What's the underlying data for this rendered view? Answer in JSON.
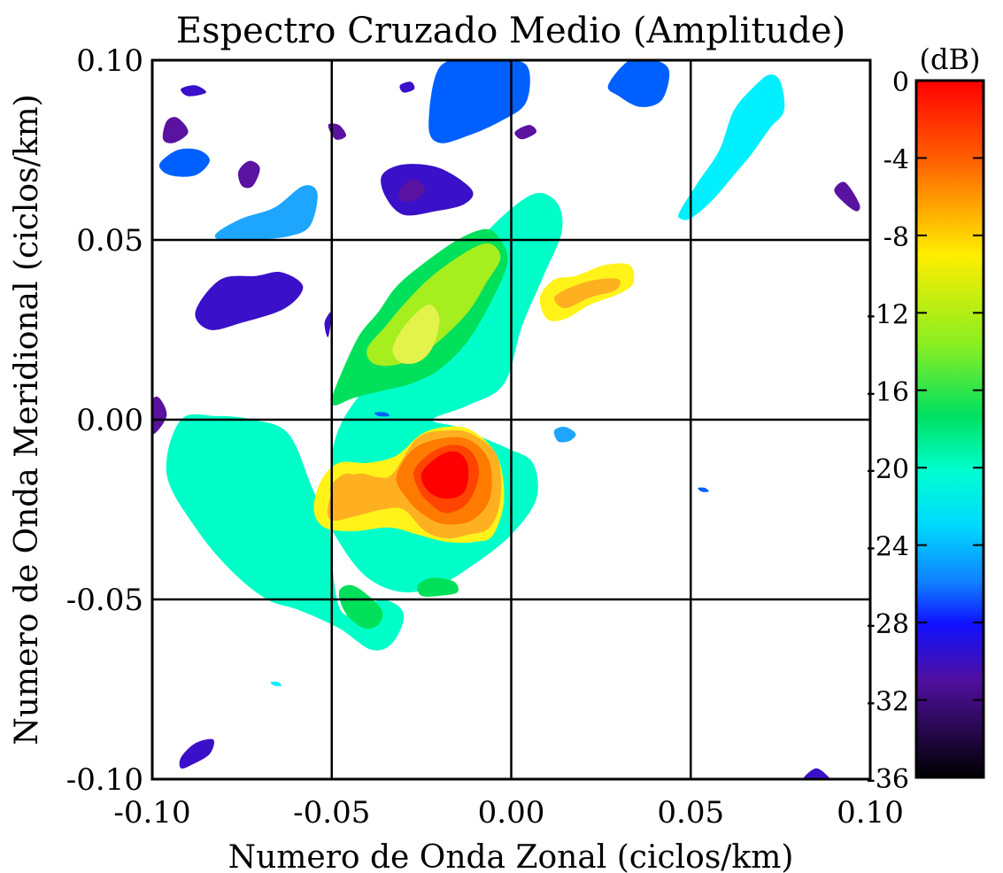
{
  "chart_data": {
    "type": "heatmap",
    "title": "Espectro Cruzado Medio (Amplitude)",
    "xlabel": "Numero de Onda Zonal (ciclos/km)",
    "ylabel": "Numero de Onda Meridional (ciclos/km)",
    "xlim": [
      -0.1,
      0.1
    ],
    "ylim": [
      -0.1,
      0.1
    ],
    "xticks": [
      "-0.10",
      "-0.05",
      "0.00",
      "0.05",
      "0.10"
    ],
    "yticks": [
      "0.10",
      "0.05",
      "0.00",
      "-0.05",
      "-0.10"
    ],
    "grid": true,
    "colorbar": {
      "unit": "(dB)",
      "range": [
        -36,
        0
      ],
      "ticks": [
        "0",
        "-4",
        "-8",
        "-12",
        "-16",
        "-20",
        "-24",
        "-28",
        "-32",
        "-36"
      ]
    },
    "regions": [
      {
        "name": "main-ridge",
        "level_db": -20,
        "color": "#00FFC8",
        "x": [
          -0.092,
          -0.096,
          -0.088,
          -0.078,
          -0.068,
          -0.059,
          -0.048,
          -0.039,
          -0.033,
          -0.03,
          -0.036,
          -0.048,
          -0.05,
          -0.04,
          -0.03,
          -0.02,
          -0.012,
          -0.002,
          0.007,
          0.013,
          0.014,
          0.009,
          0.003,
          -0.002,
          -0.012,
          -0.022,
          -0.015,
          -0.008,
          -0.001,
          0.006,
          0.007,
          0.0,
          -0.01,
          -0.02,
          -0.03,
          -0.04,
          -0.048,
          -0.055,
          -0.062,
          -0.072,
          -0.082
        ],
        "y": [
          0.0,
          -0.015,
          -0.03,
          -0.042,
          -0.05,
          -0.053,
          -0.058,
          -0.064,
          -0.062,
          -0.054,
          -0.05,
          -0.052,
          -0.01,
          0.01,
          0.022,
          0.032,
          0.046,
          0.057,
          0.063,
          0.06,
          0.052,
          0.04,
          0.026,
          0.01,
          0.004,
          0.0,
          -0.002,
          -0.005,
          -0.008,
          -0.012,
          -0.022,
          -0.032,
          -0.04,
          -0.046,
          -0.048,
          -0.044,
          -0.034,
          -0.02,
          -0.004,
          0.0,
          0.001
        ]
      },
      {
        "name": "arm-green",
        "level_db": -17,
        "color": "#00E05A",
        "x": [
          -0.05,
          -0.046,
          -0.042,
          -0.037,
          -0.032,
          -0.025,
          -0.015,
          -0.007,
          -0.003,
          -0.001,
          -0.005,
          -0.012,
          -0.02,
          -0.028,
          -0.036,
          -0.044,
          -0.049
        ],
        "y": [
          0.006,
          0.016,
          0.024,
          0.03,
          0.037,
          0.043,
          0.05,
          0.053,
          0.05,
          0.044,
          0.034,
          0.022,
          0.014,
          0.01,
          0.008,
          0.006,
          0.004
        ]
      },
      {
        "name": "arm-lime",
        "level_db": -14,
        "color": "#A6EE1E",
        "x": [
          -0.04,
          -0.035,
          -0.03,
          -0.022,
          -0.012,
          -0.006,
          -0.003,
          -0.007,
          -0.012,
          -0.02,
          -0.027,
          -0.034,
          -0.039
        ],
        "y": [
          0.02,
          0.026,
          0.032,
          0.04,
          0.047,
          0.049,
          0.045,
          0.038,
          0.03,
          0.022,
          0.017,
          0.015,
          0.016
        ]
      },
      {
        "name": "arm-yellow",
        "level_db": -11,
        "color": "#E4F24C",
        "x": [
          -0.033,
          -0.029,
          -0.023,
          -0.02,
          -0.022,
          -0.026,
          -0.031
        ],
        "y": [
          0.02,
          0.027,
          0.032,
          0.028,
          0.02,
          0.016,
          0.016
        ]
      },
      {
        "name": "peak-outer",
        "level_db": -12,
        "color": "#FFF31A",
        "x": [
          -0.055,
          -0.053,
          -0.048,
          -0.04,
          -0.032,
          -0.025,
          -0.018,
          -0.011,
          -0.004,
          -0.002,
          -0.005,
          -0.01,
          -0.018,
          -0.026,
          -0.034,
          -0.044,
          -0.052
        ],
        "y": [
          -0.025,
          -0.017,
          -0.012,
          -0.012,
          -0.01,
          -0.004,
          -0.002,
          -0.003,
          -0.01,
          -0.022,
          -0.032,
          -0.034,
          -0.034,
          -0.032,
          -0.03,
          -0.031,
          -0.03
        ]
      },
      {
        "name": "peak-orange",
        "level_db": -9,
        "color": "#FFB020",
        "x": [
          -0.051,
          -0.048,
          -0.042,
          -0.037,
          -0.033,
          -0.026,
          -0.018,
          -0.011,
          -0.004,
          -0.003,
          -0.006,
          -0.012,
          -0.018,
          -0.024,
          -0.03,
          -0.036,
          -0.044,
          -0.05
        ],
        "y": [
          -0.024,
          -0.017,
          -0.015,
          -0.016,
          -0.015,
          -0.005,
          -0.003,
          -0.004,
          -0.01,
          -0.022,
          -0.03,
          -0.032,
          -0.033,
          -0.031,
          -0.025,
          -0.025,
          -0.027,
          -0.028
        ]
      },
      {
        "name": "peak-dark-orange",
        "level_db": -6,
        "color": "#FF7A00",
        "x": [
          -0.032,
          -0.027,
          -0.018,
          -0.011,
          -0.006,
          -0.006,
          -0.011,
          -0.019,
          -0.025,
          -0.029
        ],
        "y": [
          -0.016,
          -0.008,
          -0.005,
          -0.006,
          -0.012,
          -0.022,
          -0.028,
          -0.029,
          -0.026,
          -0.022
        ]
      },
      {
        "name": "peak-red-orange",
        "level_db": -3,
        "color": "#FF4400",
        "x": [
          -0.027,
          -0.022,
          -0.016,
          -0.011,
          -0.009,
          -0.012,
          -0.018,
          -0.023,
          -0.026
        ],
        "y": [
          -0.014,
          -0.009,
          -0.007,
          -0.009,
          -0.015,
          -0.023,
          -0.026,
          -0.023,
          -0.019
        ]
      },
      {
        "name": "peak-red",
        "level_db": 0,
        "color": "#FF0000",
        "x": [
          -0.025,
          -0.02,
          -0.015,
          -0.012,
          -0.013,
          -0.018,
          -0.023
        ],
        "y": [
          -0.015,
          -0.01,
          -0.009,
          -0.013,
          -0.02,
          -0.022,
          -0.02
        ]
      },
      {
        "name": "side-peak-orange",
        "level_db": -10,
        "color": "#FFB020",
        "x": [
          -0.05,
          -0.046,
          -0.042,
          -0.043,
          -0.047,
          -0.05
        ],
        "y": [
          -0.018,
          -0.015,
          -0.017,
          -0.022,
          -0.023,
          -0.021
        ]
      },
      {
        "name": "right-blob-yellow",
        "level_db": -11,
        "color": "#FFF31A",
        "x": [
          0.008,
          0.012,
          0.018,
          0.026,
          0.033,
          0.034,
          0.03,
          0.022,
          0.015,
          0.01
        ],
        "y": [
          0.034,
          0.039,
          0.04,
          0.043,
          0.043,
          0.038,
          0.035,
          0.032,
          0.028,
          0.028
        ]
      },
      {
        "name": "right-blob-orange",
        "level_db": -9,
        "color": "#FFB020",
        "x": [
          0.012,
          0.017,
          0.024,
          0.03,
          0.029,
          0.022,
          0.015
        ],
        "y": [
          0.034,
          0.037,
          0.039,
          0.039,
          0.036,
          0.034,
          0.031
        ]
      },
      {
        "name": "low-green-1",
        "level_db": -17,
        "color": "#00E05A",
        "x": [
          -0.048,
          -0.045,
          -0.041,
          -0.036,
          -0.037,
          -0.041,
          -0.046
        ],
        "y": [
          -0.048,
          -0.046,
          -0.048,
          -0.053,
          -0.057,
          -0.058,
          -0.054
        ]
      },
      {
        "name": "low-green-2",
        "level_db": -17,
        "color": "#00E05A",
        "x": [
          -0.026,
          -0.022,
          -0.016,
          -0.015,
          -0.02,
          -0.025
        ],
        "y": [
          -0.046,
          -0.044,
          -0.045,
          -0.048,
          -0.049,
          -0.049
        ]
      },
      {
        "name": "top-cyan-right",
        "level_db": -23,
        "color": "#00F0FF",
        "x": [
          0.047,
          0.052,
          0.058,
          0.062,
          0.068,
          0.072,
          0.075,
          0.076,
          0.072,
          0.067,
          0.062,
          0.056,
          0.05,
          0.047
        ],
        "y": [
          0.058,
          0.066,
          0.075,
          0.086,
          0.093,
          0.096,
          0.094,
          0.086,
          0.081,
          0.074,
          0.068,
          0.061,
          0.056,
          0.056
        ]
      },
      {
        "name": "top-sky-left",
        "level_db": -25,
        "color": "#1EA6FF",
        "x": [
          -0.082,
          -0.075,
          -0.066,
          -0.058,
          -0.054,
          -0.056,
          -0.062,
          -0.072,
          -0.081
        ],
        "y": [
          0.052,
          0.056,
          0.059,
          0.065,
          0.063,
          0.054,
          0.051,
          0.05,
          0.05
        ]
      },
      {
        "name": "top-blue-center",
        "level_db": -27,
        "color": "#0060FF",
        "x": [
          -0.023,
          -0.02,
          -0.01,
          0.001,
          0.005,
          0.004,
          -0.003,
          -0.012,
          -0.02
        ],
        "y": [
          0.082,
          0.098,
          0.1,
          0.1,
          0.097,
          0.088,
          0.083,
          0.079,
          0.077
        ]
      },
      {
        "name": "top-blue-right",
        "level_db": -27,
        "color": "#0060FF",
        "x": [
          0.027,
          0.033,
          0.04,
          0.044,
          0.042,
          0.036,
          0.03
        ],
        "y": [
          0.093,
          0.1,
          0.1,
          0.097,
          0.089,
          0.087,
          0.09
        ]
      },
      {
        "name": "top-blue-left",
        "level_db": -27,
        "color": "#0060FF",
        "x": [
          -0.098,
          -0.093,
          -0.087,
          -0.084,
          -0.088,
          -0.095
        ],
        "y": [
          0.071,
          0.075,
          0.075,
          0.072,
          0.068,
          0.068
        ]
      },
      {
        "name": "top-indigo-1",
        "level_db": -30,
        "color": "#3A10C8",
        "x": [
          -0.088,
          -0.081,
          -0.071,
          -0.064,
          -0.058,
          -0.063,
          -0.075,
          -0.084
        ],
        "y": [
          0.03,
          0.039,
          0.04,
          0.041,
          0.037,
          0.031,
          0.027,
          0.025
        ]
      },
      {
        "name": "top-indigo-2",
        "level_db": -30,
        "color": "#3A10C8",
        "x": [
          -0.036,
          -0.03,
          -0.02,
          -0.011,
          -0.013,
          -0.021,
          -0.03,
          -0.035
        ],
        "y": [
          0.068,
          0.071,
          0.07,
          0.064,
          0.06,
          0.058,
          0.057,
          0.062
        ]
      },
      {
        "name": "top-purple-1",
        "level_db": -32,
        "color": "#5A12A0",
        "x": [
          -0.076,
          -0.073,
          -0.07,
          -0.072,
          -0.075
        ],
        "y": [
          0.069,
          0.072,
          0.07,
          0.065,
          0.065
        ]
      },
      {
        "name": "top-purple-2",
        "level_db": -32,
        "color": "#5A12A0",
        "x": [
          -0.031,
          -0.027,
          -0.024,
          -0.027,
          -0.031
        ],
        "y": [
          0.064,
          0.067,
          0.064,
          0.061,
          0.061
        ]
      },
      {
        "name": "top-purple-3",
        "level_db": -32,
        "color": "#5A12A0",
        "x": [
          0.09,
          0.093,
          0.097,
          0.096,
          0.092
        ],
        "y": [
          0.064,
          0.066,
          0.06,
          0.058,
          0.061
        ]
      },
      {
        "name": "top-purple-4",
        "level_db": -32,
        "color": "#5A12A0",
        "x": [
          -0.096,
          -0.093,
          -0.09,
          -0.094,
          -0.097
        ],
        "y": [
          0.083,
          0.084,
          0.08,
          0.077,
          0.078
        ]
      },
      {
        "name": "top-purple-5",
        "level_db": -32,
        "color": "#5A12A0",
        "x": [
          -0.051,
          -0.048,
          -0.046,
          -0.049
        ],
        "y": [
          0.082,
          0.082,
          0.079,
          0.078
        ]
      },
      {
        "name": "top-purple-6",
        "level_db": -32,
        "color": "#5A12A0",
        "x": [
          0.001,
          0.005,
          0.007,
          0.003
        ],
        "y": [
          0.08,
          0.082,
          0.08,
          0.078
        ]
      },
      {
        "name": "top-indigo-small",
        "level_db": -30,
        "color": "#3A10C8",
        "x": [
          -0.092,
          -0.088,
          -0.085,
          -0.09
        ],
        "y": [
          0.092,
          0.093,
          0.091,
          0.09
        ]
      },
      {
        "name": "top-indigo-small-2",
        "level_db": -30,
        "color": "#3A10C8",
        "x": [
          -0.031,
          -0.028,
          -0.027,
          -0.03
        ],
        "y": [
          0.093,
          0.094,
          0.092,
          0.091
        ]
      },
      {
        "name": "edge-purple",
        "level_db": -32,
        "color": "#5A12A0",
        "x": [
          -0.1,
          -0.098,
          -0.096,
          -0.1
        ],
        "y": [
          0.005,
          0.006,
          0.001,
          -0.004
        ]
      },
      {
        "name": "small-indigo-mid",
        "level_db": -30,
        "color": "#3A10C8",
        "x": [
          -0.052,
          -0.05,
          -0.051
        ],
        "y": [
          0.027,
          0.03,
          0.023
        ]
      },
      {
        "name": "bottom-indigo",
        "level_db": -30,
        "color": "#3A10C8",
        "x": [
          -0.092,
          -0.088,
          -0.083,
          -0.084,
          -0.089,
          -0.092
        ],
        "y": [
          -0.094,
          -0.09,
          -0.089,
          -0.093,
          -0.096,
          -0.097
        ]
      },
      {
        "name": "bottom-indigo-right",
        "level_db": -30,
        "color": "#3A10C8",
        "x": [
          0.082,
          0.085,
          0.088,
          0.088,
          0.082
        ],
        "y": [
          -0.099,
          -0.097,
          -0.099,
          -0.1,
          -0.1
        ]
      },
      {
        "name": "small-sky",
        "level_db": -25,
        "color": "#1EA6FF",
        "x": [
          0.012,
          0.015,
          0.018,
          0.016,
          0.013
        ],
        "y": [
          -0.003,
          -0.002,
          -0.004,
          -0.006,
          -0.006
        ]
      },
      {
        "name": "small-blue-dot",
        "level_db": -27,
        "color": "#0060FF",
        "x": [
          0.052,
          0.054,
          0.055,
          0.053
        ],
        "y": [
          -0.019,
          -0.019,
          -0.02,
          -0.02
        ]
      },
      {
        "name": "small-cyan-dot",
        "level_db": -23,
        "color": "#00F0FF",
        "x": [
          -0.067,
          -0.065,
          -0.064,
          -0.066
        ],
        "y": [
          -0.073,
          -0.073,
          -0.074,
          -0.074
        ]
      },
      {
        "name": "small-blue-center",
        "level_db": -27,
        "color": "#0060FF",
        "x": [
          -0.038,
          -0.035,
          -0.034,
          -0.037
        ],
        "y": [
          0.002,
          0.002,
          0.001,
          0.001
        ]
      }
    ]
  }
}
